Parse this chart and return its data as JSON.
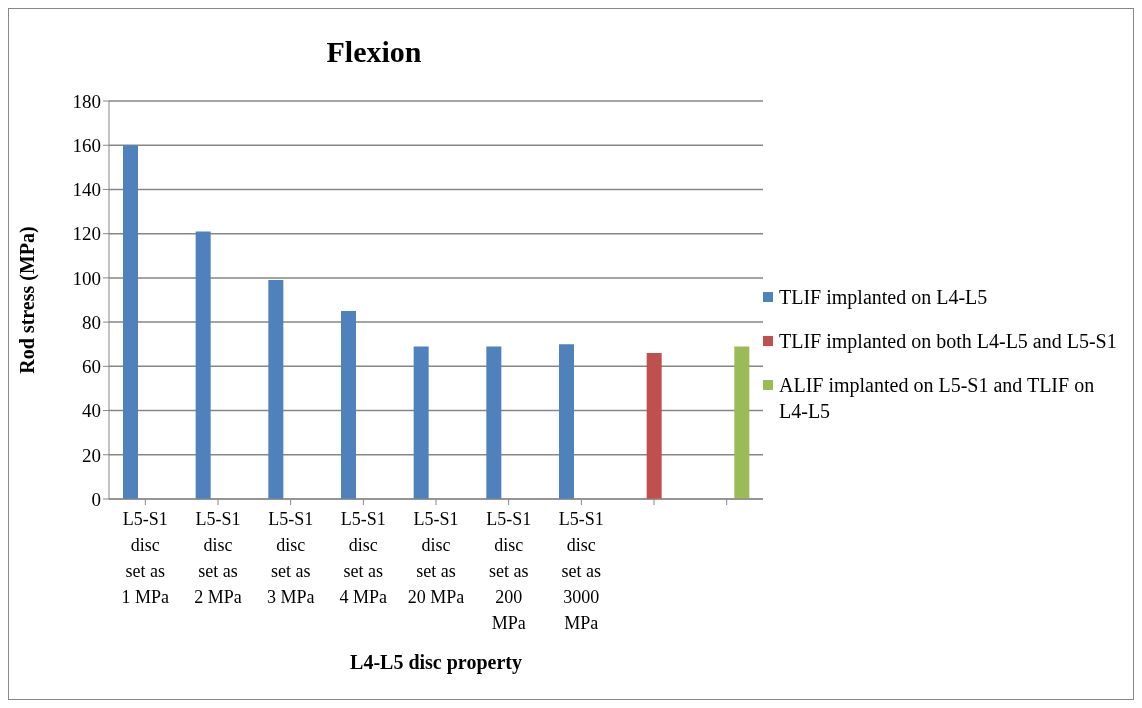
{
  "chart_data": {
    "type": "bar",
    "title": "Flexion",
    "xlabel": "L4-L5 disc property",
    "ylabel": "Rod stress (MPa)",
    "categories": [
      "L5-S1 disc set as 1 MPa",
      "L5-S1 disc set as 2 MPa",
      "L5-S1 disc set as 3 MPa",
      "L5-S1 disc set as 4 MPa",
      "L5-S1 disc set as 20 MPa",
      "L5-S1 disc set as 200 MPa",
      "L5-S1 disc set as 3000 MPa",
      null,
      null
    ],
    "series": [
      {
        "name": "TLIF implanted on L4-L5",
        "color": "#4f81bd",
        "values": [
          160,
          121,
          99,
          85,
          69,
          69,
          70,
          null,
          null
        ]
      },
      {
        "name": "TLIF implanted on both L4-L5 and L5-S1",
        "color": "#c0504d",
        "values": [
          null,
          null,
          null,
          null,
          null,
          null,
          null,
          66,
          null
        ]
      },
      {
        "name": "ALIF implanted on L5-S1 and TLIF on L4-L5",
        "color": "#9bbb59",
        "values": [
          null,
          null,
          null,
          null,
          null,
          null,
          null,
          null,
          69
        ]
      }
    ],
    "ylim": [
      0,
      180
    ],
    "yticks": [
      0,
      20,
      40,
      60,
      80,
      100,
      120,
      140,
      160,
      180
    ],
    "grid": "y",
    "legend": "right"
  }
}
